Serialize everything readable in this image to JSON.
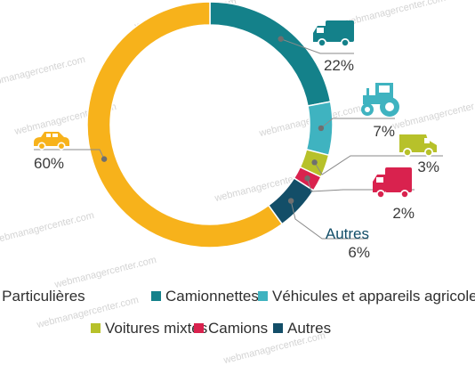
{
  "watermark": "webmanagercenter.com",
  "chart_data": {
    "type": "donut",
    "series": [
      {
        "name": "Camionnettes",
        "value": 22,
        "label": "22%",
        "color": "#14818a"
      },
      {
        "name": "Véhicules et appareils agricoles",
        "value": 7,
        "label": "7%",
        "color": "#3fb3c0"
      },
      {
        "name": "Voitures mixtes",
        "value": 3,
        "label": "3%",
        "color": "#b7c12a"
      },
      {
        "name": "Camions",
        "value": 2,
        "label": "2%",
        "color": "#d9224e"
      },
      {
        "name": "Autres",
        "value": 6,
        "label": "6%",
        "color": "#134e68"
      },
      {
        "name": "Voitures Particulières",
        "value": 60,
        "label": "60%",
        "color": "#f7b21b"
      }
    ],
    "annotation": "Autres",
    "legend_position": "bottom",
    "legend_rows": [
      [
        "Voitures Particulières",
        "Camionnettes",
        "Véhicules et appareils agricoles"
      ],
      [
        "Voitures mixtes",
        "Camions",
        "Autres"
      ]
    ],
    "icons": {
      "Camionnettes": "van-icon",
      "Véhicules et appareils agricoles": "tractor-icon",
      "Voitures mixtes": "pickup-van-icon",
      "Camions": "truck-icon",
      "Voitures Particulières": "car-icon"
    }
  }
}
